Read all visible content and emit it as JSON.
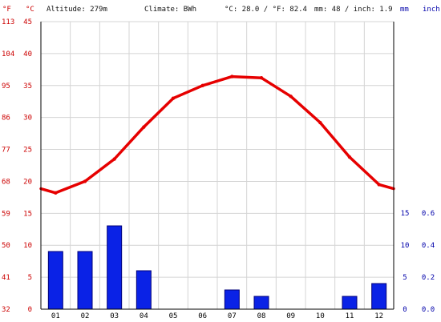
{
  "header": {
    "altitude": "Altitude: 279m",
    "climate": "Climate: BWh",
    "averages": "°C: 28.0 / °F: 82.4",
    "precip": "mm: 48 / inch: 1.9"
  },
  "axis_units": {
    "fahrenheit": "°F",
    "celsius": "°C",
    "mm": "mm",
    "inch": "inch"
  },
  "colors": {
    "temperature": "#e60000",
    "precipitation": "#0a22e6",
    "precipitation_edge": "#00007a",
    "temp_axis": "#cc0000",
    "precip_axis": "#0000aa",
    "grid": "#d4d4d4"
  },
  "chart_data": {
    "type": "bar",
    "categories": [
      "01",
      "02",
      "03",
      "04",
      "05",
      "06",
      "07",
      "08",
      "09",
      "10",
      "11",
      "12"
    ],
    "series": [
      {
        "type": "line",
        "axis": "temperature",
        "values": [
          18.2,
          20.0,
          23.5,
          28.5,
          33.0,
          35.0,
          36.4,
          36.2,
          33.3,
          29.2,
          23.8,
          19.5
        ]
      },
      {
        "type": "bar",
        "axis": "precipitation",
        "values": [
          9,
          9,
          13,
          6,
          0,
          0,
          3,
          2,
          0,
          0,
          2,
          4
        ]
      }
    ],
    "celsius_ticks": [
      "0",
      "5",
      "10",
      "15",
      "20",
      "25",
      "30",
      "35",
      "40",
      "45"
    ],
    "fahrenheit_ticks": [
      "32",
      "41",
      "50",
      "59",
      "68",
      "77",
      "86",
      "95",
      "104",
      "113"
    ],
    "mm_ticks": [
      "0",
      "5",
      "10",
      "15"
    ],
    "inch_ticks": [
      "0.0",
      "0.2",
      "0.4",
      "0.6"
    ],
    "temperature_range": [
      0,
      45
    ],
    "precipitation_range_mm": [
      0,
      15
    ],
    "grid": true
  }
}
